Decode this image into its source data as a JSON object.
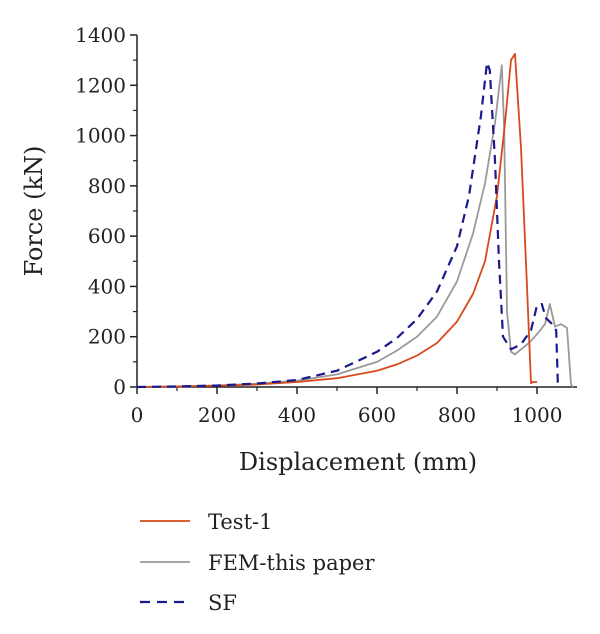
{
  "chart_data": {
    "type": "line",
    "xlabel": "Displacement (mm)",
    "ylabel": "Force (kN)",
    "xlim": [
      0,
      1100
    ],
    "ylim": [
      0,
      1400
    ],
    "xticks": [
      0,
      200,
      400,
      600,
      800,
      1000
    ],
    "yticks": [
      0,
      200,
      400,
      600,
      800,
      1000,
      1200,
      1400
    ],
    "grid": false,
    "legend": "bottom",
    "series": [
      {
        "name": "Test-1",
        "color": "#d64a1c",
        "dash": "solid",
        "x": [
          0,
          100,
          200,
          300,
          400,
          500,
          600,
          650,
          700,
          750,
          800,
          840,
          870,
          900,
          920,
          935,
          945,
          960,
          975,
          985,
          990,
          1000
        ],
        "y": [
          0,
          2,
          5,
          10,
          20,
          35,
          65,
          90,
          125,
          175,
          260,
          370,
          500,
          760,
          1050,
          1300,
          1325,
          950,
          400,
          15,
          20,
          20
        ]
      },
      {
        "name": "FEM-this paper",
        "color": "#9a9a9a",
        "dash": "solid",
        "x": [
          0,
          100,
          200,
          300,
          400,
          500,
          600,
          650,
          700,
          750,
          800,
          840,
          870,
          895,
          912,
          918,
          925,
          935,
          945,
          960,
          980,
          1000,
          1020,
          1032,
          1045,
          1060,
          1075,
          1085,
          1090
        ],
        "y": [
          0,
          2,
          6,
          13,
          25,
          50,
          100,
          145,
          200,
          280,
          420,
          610,
          810,
          1050,
          1280,
          1020,
          300,
          140,
          130,
          150,
          175,
          210,
          250,
          330,
          240,
          250,
          235,
          10,
          0
        ]
      },
      {
        "name": "SF",
        "color": "#1a1a8c",
        "dash": "dashed",
        "x": [
          0,
          100,
          200,
          300,
          400,
          500,
          600,
          650,
          700,
          750,
          800,
          830,
          860,
          875,
          882,
          895,
          905,
          915,
          935,
          960,
          985,
          1000,
          1012,
          1022,
          1035,
          1048,
          1052,
          1060
        ],
        "y": [
          0,
          2,
          6,
          14,
          28,
          65,
          140,
          195,
          270,
          380,
          560,
          760,
          1080,
          1290,
          1260,
          900,
          500,
          200,
          150,
          170,
          225,
          325,
          330,
          275,
          255,
          225,
          20,
          0
        ]
      }
    ]
  }
}
